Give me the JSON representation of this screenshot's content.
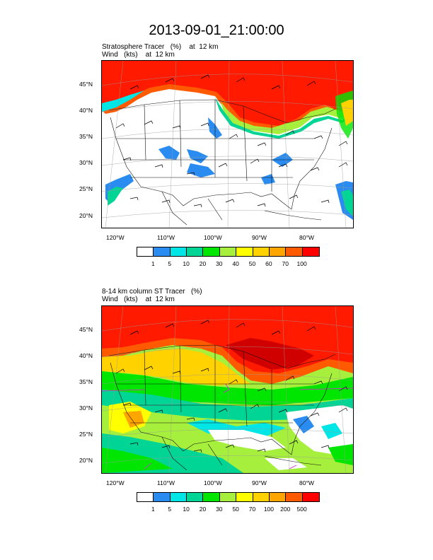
{
  "title": "2013-09-01_21:00:00",
  "panels": [
    {
      "line1": "Stratosphere Tracer   (%)    at  12 km",
      "line2": "Wind   (kts)    at  12 km",
      "lat_labels": [
        "45°N",
        "40°N",
        "35°N",
        "30°N",
        "25°N",
        "20°N"
      ],
      "lon_labels": [
        "120°W",
        "110°W",
        "100°W",
        "90°W",
        "80°W"
      ],
      "colorbar": {
        "colors": [
          "#ffffff",
          "#2a8cf0",
          "#00e5e5",
          "#00d596",
          "#00e600",
          "#a6ef3c",
          "#ffff00",
          "#ffd200",
          "#ffa500",
          "#ff5a00",
          "#ff0000"
        ],
        "labels": [
          "1",
          "5",
          "10",
          "20",
          "30",
          "40",
          "50",
          "60",
          "70",
          "100"
        ]
      }
    },
    {
      "line1": "8-14 km column ST Tracer   (%)",
      "line2": "Wind   (kts)    at  12 km",
      "lat_labels": [
        "45°N",
        "40°N",
        "35°N",
        "30°N",
        "25°N",
        "20°N"
      ],
      "lon_labels": [
        "120°W",
        "110°W",
        "100°W",
        "90°W",
        "80°W"
      ],
      "colorbar": {
        "colors": [
          "#ffffff",
          "#2a8cf0",
          "#00e5e5",
          "#00d596",
          "#00e600",
          "#a6ef3c",
          "#ffff00",
          "#ffd200",
          "#ffa500",
          "#ff5a00",
          "#ff0000"
        ],
        "labels": [
          "1",
          "5",
          "10",
          "20",
          "30",
          "50",
          "70",
          "100",
          "200",
          "500"
        ]
      }
    }
  ]
}
